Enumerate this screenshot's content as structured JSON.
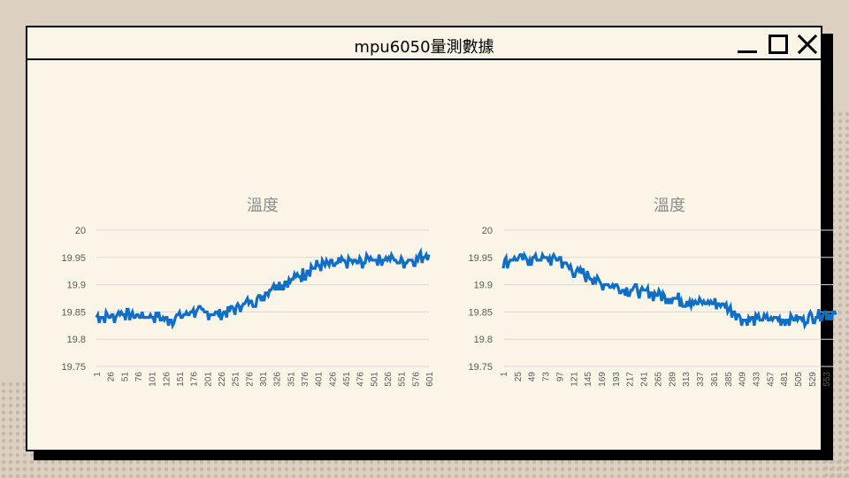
{
  "window": {
    "title": "mpu6050量測數據",
    "controls": [
      "minimize-icon",
      "maximize-icon",
      "close-icon"
    ]
  },
  "colors": {
    "series": "#0f6fc6",
    "grid": "#d9d9d9",
    "axis_text": "#595959",
    "title_text": "#8c8c8c"
  },
  "chart_data": [
    {
      "type": "line",
      "title": "溫度",
      "xlabel": "",
      "ylabel": "",
      "ylim": [
        19.75,
        20
      ],
      "yticks": [
        "19.75",
        "19.8",
        "19.85",
        "19.9",
        "19.95",
        "20"
      ],
      "grid": true,
      "legend": "none",
      "xticks": [
        "1",
        "26",
        "51",
        "76",
        "101",
        "126",
        "151",
        "176",
        "201",
        "226",
        "251",
        "276",
        "301",
        "326",
        "351",
        "376",
        "401",
        "426",
        "451",
        "476",
        "501",
        "526",
        "551",
        "576",
        "601"
      ],
      "series": [
        {
          "x": [
            1,
            26,
            51,
            76,
            101,
            126,
            151,
            176,
            201,
            226,
            251,
            276,
            301,
            326,
            351,
            376,
            401,
            426,
            451,
            476,
            501,
            526,
            551,
            576,
            601
          ],
          "values": [
            19.84,
            19.84,
            19.845,
            19.84,
            19.84,
            19.835,
            19.84,
            19.85,
            19.845,
            19.845,
            19.855,
            19.865,
            19.88,
            19.9,
            19.905,
            19.92,
            19.935,
            19.935,
            19.94,
            19.94,
            19.945,
            19.945,
            19.94,
            19.945,
            19.955
          ]
        }
      ]
    },
    {
      "type": "line",
      "title": "溫度",
      "xlabel": "",
      "ylabel": "",
      "ylim": [
        19.75,
        20
      ],
      "yticks": [
        "19.75",
        "19.8",
        "19.85",
        "19.9",
        "19.95",
        "20"
      ],
      "grid": true,
      "legend": "none",
      "xticks": [
        "1",
        "25",
        "49",
        "73",
        "97",
        "121",
        "145",
        "169",
        "193",
        "217",
        "241",
        "265",
        "289",
        "313",
        "337",
        "361",
        "385",
        "409",
        "433",
        "457",
        "481",
        "505",
        "529",
        "553"
      ],
      "series": [
        {
          "x": [
            1,
            25,
            49,
            73,
            97,
            121,
            145,
            169,
            193,
            217,
            241,
            265,
            289,
            313,
            337,
            361,
            385,
            409,
            433,
            457,
            481,
            505,
            529,
            553,
            570
          ],
          "values": [
            19.94,
            19.945,
            19.945,
            19.945,
            19.945,
            19.925,
            19.915,
            19.9,
            19.895,
            19.89,
            19.885,
            19.88,
            19.875,
            19.87,
            19.865,
            19.865,
            19.86,
            19.835,
            19.835,
            19.835,
            19.835,
            19.835,
            19.84,
            19.845,
            19.845
          ]
        }
      ]
    }
  ]
}
